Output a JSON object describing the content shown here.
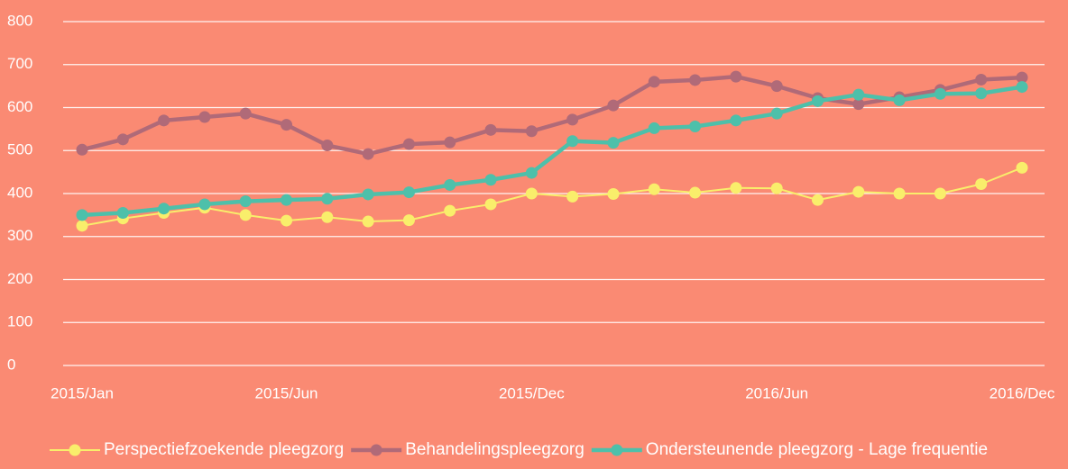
{
  "chart_data": {
    "type": "line",
    "categories": [
      "2015/Jan",
      null,
      null,
      null,
      null,
      "2015/Jun",
      null,
      null,
      null,
      null,
      null,
      "2015/Dec",
      null,
      null,
      null,
      null,
      null,
      "2016/Jun",
      null,
      null,
      null,
      null,
      null,
      "2016/Dec"
    ],
    "series": [
      {
        "name": "Perspectiefzoekende pleegzorg",
        "color": "#f9ee6b",
        "values": [
          325,
          342,
          355,
          367,
          350,
          337,
          345,
          335,
          338,
          360,
          375,
          400,
          393,
          399,
          410,
          402,
          413,
          412,
          385,
          404,
          400,
          400,
          422,
          460
        ]
      },
      {
        "name": "Behandelingspleegzorg",
        "color": "#b06a78",
        "values": [
          502,
          526,
          570,
          578,
          586,
          560,
          512,
          492,
          515,
          519,
          548,
          545,
          572,
          605,
          660,
          664,
          672,
          650,
          622,
          608,
          624,
          641,
          665,
          670
        ]
      },
      {
        "name": "Ondersteunende pleegzorg - Lage frequentie",
        "color": "#4dc0aa",
        "values": [
          350,
          355,
          365,
          375,
          382,
          385,
          388,
          398,
          403,
          420,
          432,
          448,
          522,
          518,
          552,
          556,
          570,
          586,
          615,
          630,
          617,
          632,
          633,
          648
        ]
      }
    ],
    "ylim": [
      0,
      800
    ],
    "yticks": [
      0,
      100,
      200,
      300,
      400,
      500,
      600,
      700,
      800
    ],
    "grid": true,
    "legend": "bottom"
  }
}
